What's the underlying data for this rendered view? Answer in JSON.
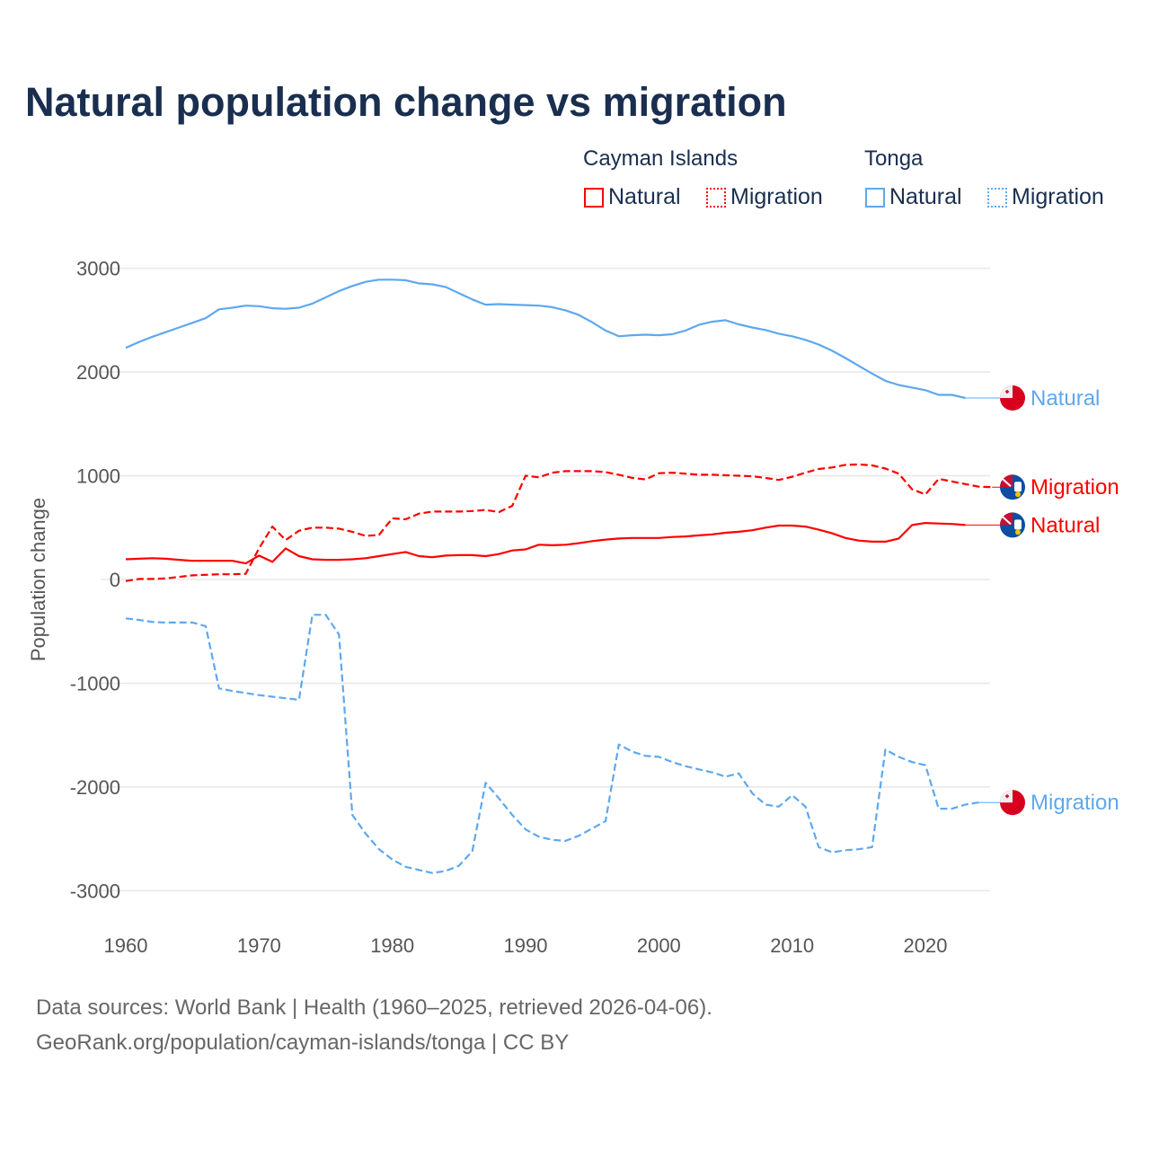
{
  "title": "Natural population change vs migration",
  "legend": {
    "groups": [
      {
        "name": "Cayman Islands",
        "color": "#ff0000",
        "items": [
          "Natural",
          "Migration"
        ]
      },
      {
        "name": "Tonga",
        "color": "#5ea8ee",
        "items": [
          "Natural",
          "Migration"
        ]
      }
    ]
  },
  "footer": {
    "line1": "Data sources: World Bank | Health (1960–2025, retrieved 2026-04-06).",
    "line2": "GeoRank.org/population/cayman-islands/tonga | CC BY"
  },
  "chart_data": {
    "type": "line",
    "title": "Natural population change vs migration",
    "xlabel": "",
    "ylabel": "Population change",
    "xlim": [
      1960,
      2025
    ],
    "ylim": [
      -3000,
      3000
    ],
    "xticks": [
      1960,
      1970,
      1980,
      1990,
      2000,
      2010,
      2020
    ],
    "yticks": [
      3000,
      2000,
      1000,
      0,
      -1000,
      -2000,
      -3000
    ],
    "grid": true,
    "x_start": 1960,
    "series": [
      {
        "name": "Natural",
        "country": "Tonga",
        "color": "#5ea8ee",
        "dash": false,
        "end_label": "Natural",
        "flag": "tonga-flag-icon",
        "values": [
          2234,
          2290,
          2340,
          2385,
          2430,
          2475,
          2520,
          2605,
          2620,
          2640,
          2635,
          2615,
          2610,
          2620,
          2660,
          2720,
          2780,
          2830,
          2870,
          2890,
          2890,
          2885,
          2855,
          2845,
          2820,
          2760,
          2700,
          2650,
          2655,
          2650,
          2645,
          2640,
          2625,
          2595,
          2550,
          2480,
          2400,
          2345,
          2355,
          2360,
          2355,
          2365,
          2400,
          2455,
          2485,
          2500,
          2460,
          2430,
          2405,
          2370,
          2345,
          2310,
          2265,
          2205,
          2135,
          2060,
          1985,
          1915,
          1875,
          1850,
          1825,
          1780,
          1780,
          1750
        ]
      },
      {
        "name": "Migration",
        "country": "Cayman Islands",
        "color": "#ff0000",
        "dash": true,
        "end_label": "Migration",
        "flag": "cayman-islands-flag-icon",
        "values": [
          -15,
          5,
          5,
          10,
          25,
          40,
          45,
          50,
          50,
          55,
          300,
          510,
          380,
          470,
          500,
          500,
          490,
          460,
          420,
          430,
          590,
          580,
          635,
          655,
          655,
          655,
          660,
          670,
          650,
          710,
          1000,
          985,
          1030,
          1045,
          1045,
          1045,
          1035,
          1010,
          980,
          965,
          1025,
          1030,
          1020,
          1010,
          1010,
          1005,
          1000,
          995,
          980,
          960,
          990,
          1030,
          1065,
          1080,
          1105,
          1110,
          1100,
          1070,
          1020,
          870,
          820,
          970,
          945,
          920,
          895,
          890
        ]
      },
      {
        "name": "Natural",
        "country": "Cayman Islands",
        "color": "#ff0000",
        "dash": false,
        "end_label": "Natural",
        "flag": "cayman-islands-flag-icon",
        "values": [
          195,
          200,
          205,
          200,
          190,
          180,
          180,
          180,
          180,
          155,
          230,
          170,
          300,
          225,
          195,
          190,
          190,
          195,
          205,
          225,
          245,
          265,
          225,
          215,
          230,
          235,
          235,
          225,
          245,
          280,
          290,
          335,
          330,
          335,
          350,
          370,
          385,
          395,
          400,
          400,
          400,
          410,
          415,
          425,
          435,
          450,
          460,
          475,
          500,
          520,
          520,
          510,
          480,
          445,
          400,
          375,
          365,
          365,
          395,
          525,
          545,
          540,
          535,
          525
        ]
      },
      {
        "name": "Migration",
        "country": "Tonga",
        "color": "#5ea8ee",
        "dash": true,
        "end_label": "Migration",
        "flag": "tonga-flag-icon",
        "values": [
          -375,
          -390,
          -410,
          -415,
          -415,
          -415,
          -450,
          -1050,
          -1075,
          -1095,
          -1115,
          -1130,
          -1145,
          -1160,
          -340,
          -340,
          -530,
          -2270,
          -2450,
          -2600,
          -2700,
          -2770,
          -2800,
          -2830,
          -2810,
          -2760,
          -2620,
          -1960,
          -2110,
          -2270,
          -2410,
          -2480,
          -2510,
          -2520,
          -2470,
          -2400,
          -2330,
          -1590,
          -1660,
          -1700,
          -1710,
          -1760,
          -1800,
          -1830,
          -1860,
          -1900,
          -1870,
          -2060,
          -2170,
          -2190,
          -2080,
          -2190,
          -2580,
          -2630,
          -2610,
          -2600,
          -2580,
          -1640,
          -1710,
          -1760,
          -1790,
          -2210,
          -2210,
          -2170,
          -2150
        ]
      }
    ]
  }
}
